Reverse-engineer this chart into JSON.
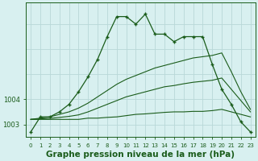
{
  "title": "Graphe pression niveau de la mer (hPa)",
  "bg_color": "#d8f0f0",
  "grid_color": "#b8d8d8",
  "line_color": "#1a5c1a",
  "hours": [
    0,
    1,
    2,
    3,
    4,
    5,
    6,
    7,
    8,
    9,
    10,
    11,
    12,
    13,
    14,
    15,
    16,
    17,
    18,
    19,
    20,
    21,
    22,
    23
  ],
  "series1": [
    1002.7,
    1003.3,
    1003.3,
    1003.5,
    1003.8,
    1004.3,
    1004.9,
    1005.6,
    1006.5,
    1007.3,
    1007.3,
    1007.0,
    1007.4,
    1006.6,
    1006.6,
    1006.3,
    1006.5,
    1006.5,
    1006.5,
    1005.4,
    1004.4,
    1003.8,
    1003.1,
    1002.7
  ],
  "series2": [
    1003.2,
    1003.25,
    1003.3,
    1003.4,
    1003.5,
    1003.65,
    1003.85,
    1004.1,
    1004.35,
    1004.6,
    1004.8,
    1004.95,
    1005.1,
    1005.25,
    1005.35,
    1005.45,
    1005.55,
    1005.65,
    1005.7,
    1005.75,
    1005.85,
    1005.1,
    1004.3,
    1003.6
  ],
  "series3": [
    1003.2,
    1003.22,
    1003.24,
    1003.28,
    1003.32,
    1003.38,
    1003.5,
    1003.65,
    1003.8,
    1003.95,
    1004.1,
    1004.2,
    1004.3,
    1004.4,
    1004.5,
    1004.55,
    1004.62,
    1004.68,
    1004.72,
    1004.76,
    1004.85,
    1004.4,
    1003.95,
    1003.5
  ],
  "series4": [
    1003.2,
    1003.2,
    1003.2,
    1003.2,
    1003.2,
    1003.2,
    1003.25,
    1003.25,
    1003.28,
    1003.3,
    1003.35,
    1003.4,
    1003.42,
    1003.45,
    1003.48,
    1003.5,
    1003.5,
    1003.52,
    1003.52,
    1003.55,
    1003.6,
    1003.5,
    1003.4,
    1003.3
  ],
  "ylim": [
    1002.5,
    1007.85
  ],
  "yticks": [
    1003,
    1004
  ],
  "title_fontsize": 7.5,
  "tick_fontsize": 6.0
}
